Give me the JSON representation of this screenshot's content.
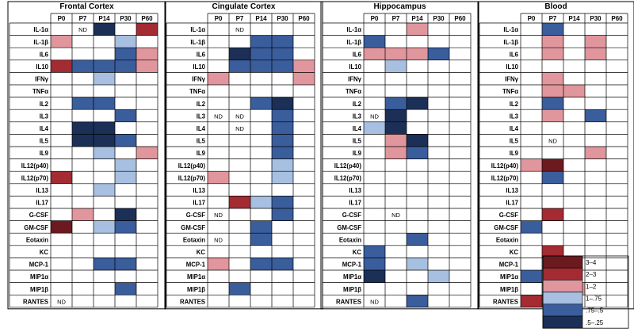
{
  "chart_data": {
    "type": "heatmap",
    "timepoints": [
      "P0",
      "P7",
      "P14",
      "P30",
      "P60"
    ],
    "cytokines": [
      "IL-1α",
      "IL-1β",
      "IL6",
      "IL10",
      "IFNγ",
      "TNFα",
      "IL2",
      "IL3",
      "IL4",
      "IL5",
      "IL9",
      "IL12(p40)",
      "IL12(p70)",
      "IL13",
      "IL17",
      "G-CSF",
      "GM-CSF",
      "Eotaxin",
      "KC",
      "MCP-1",
      "MIP1α",
      "MIP1β",
      "RANTES"
    ],
    "nd_label": "ND",
    "colors": {
      "3–4": "#6b1a1f",
      "2–3": "#a32b31",
      "1–2": "#e0969c",
      "1–.75": "#a7bfe0",
      ".75–.5": "#3a5d9c",
      ".5–.25": "#1b2f57"
    },
    "regions": [
      {
        "title": "Frontal Cortex",
        "cells": [
          [
            "",
            "ND",
            ".5–.25",
            "",
            "2–3"
          ],
          [
            "1–2",
            "",
            "",
            "1–.75",
            ""
          ],
          [
            "",
            "",
            "",
            ".75–.5",
            "1–2"
          ],
          [
            "2–3",
            ".75–.5",
            ".75–.5",
            ".75–.5",
            "1–2"
          ],
          [
            "",
            "",
            "1–.75",
            "",
            ""
          ],
          [
            "",
            "",
            "",
            "",
            ""
          ],
          [
            "",
            ".75–.5",
            ".75–.5",
            "",
            ""
          ],
          [
            "",
            "",
            "",
            ".75–.5",
            ""
          ],
          [
            "",
            ".5–.25",
            ".5–.25",
            "",
            ""
          ],
          [
            "",
            ".5–.25",
            ".5–.25",
            ".75–.5",
            ""
          ],
          [
            "",
            "",
            "1–.75",
            "",
            "1–2"
          ],
          [
            "",
            "",
            "",
            "1–.75",
            ""
          ],
          [
            "2–3",
            "",
            "",
            "1–.75",
            ""
          ],
          [
            "",
            "",
            "1–.75",
            "",
            ""
          ],
          [
            "",
            "",
            "",
            "",
            ""
          ],
          [
            "",
            "1–2",
            "",
            ".5–.25",
            ""
          ],
          [
            "3–4",
            "",
            "1–.75",
            ".75–.5",
            ""
          ],
          [
            "",
            "",
            "",
            "",
            ""
          ],
          [
            "",
            "",
            "",
            "",
            ""
          ],
          [
            "",
            "",
            ".75–.5",
            ".75–.5",
            ""
          ],
          [
            "",
            "",
            "",
            "",
            ""
          ],
          [
            "",
            "",
            "",
            ".75–.5",
            ""
          ],
          [
            "ND",
            "",
            "",
            "",
            ""
          ]
        ]
      },
      {
        "title": "Cingulate Cortex",
        "cells": [
          [
            "",
            "ND",
            "",
            "",
            ""
          ],
          [
            "",
            "",
            ".75–.5",
            ".75–.5",
            ""
          ],
          [
            "",
            ".5–.25",
            ".75–.5",
            ".75–.5",
            ""
          ],
          [
            "",
            ".75–.5",
            ".75–.5",
            ".75–.5",
            "1–2"
          ],
          [
            "1–2",
            "",
            "",
            "",
            "1–2"
          ],
          [
            "",
            "",
            "",
            "",
            ""
          ],
          [
            "",
            "",
            ".75–.5",
            ".5–.25",
            ""
          ],
          [
            "ND",
            "ND",
            "",
            ".75–.5",
            ""
          ],
          [
            "",
            "ND",
            "",
            ".75–.5",
            ""
          ],
          [
            "",
            "",
            "",
            ".75–.5",
            ""
          ],
          [
            "",
            "",
            "",
            ".75–.5",
            ""
          ],
          [
            "",
            "",
            "",
            "1–.75",
            ""
          ],
          [
            "1–2",
            "",
            "",
            "1–.75",
            ""
          ],
          [
            "",
            "",
            "",
            "",
            ""
          ],
          [
            "",
            "2–3",
            "1–.75",
            ".75–.5",
            ""
          ],
          [
            "ND",
            "",
            "",
            ".75–.5",
            ""
          ],
          [
            "",
            "",
            ".75–.5",
            "",
            ""
          ],
          [
            "ND",
            "",
            ".75–.5",
            "",
            ""
          ],
          [
            "",
            "",
            "",
            "",
            ""
          ],
          [
            "1–2",
            "",
            ".75–.5",
            ".75–.5",
            ""
          ],
          [
            "",
            "",
            "",
            "",
            ""
          ],
          [
            "",
            ".75–.5",
            "",
            "",
            ""
          ],
          [
            "",
            "",
            "",
            "",
            ""
          ]
        ]
      },
      {
        "title": "Hippocampus",
        "cells": [
          [
            "",
            "",
            "1–2",
            "",
            ""
          ],
          [
            ".75–.5",
            "",
            "",
            "",
            ""
          ],
          [
            "1–2",
            "1–2",
            "1–2",
            ".75–.5",
            ""
          ],
          [
            "",
            "1–.75",
            "",
            "",
            ""
          ],
          [
            "",
            "",
            "",
            "",
            ""
          ],
          [
            "",
            "",
            "",
            "",
            ""
          ],
          [
            "",
            ".75–.5",
            ".5–.25",
            "",
            ""
          ],
          [
            "ND",
            ".5–.25",
            "",
            "",
            ""
          ],
          [
            "1–.75",
            ".5–.25",
            "",
            "",
            ""
          ],
          [
            "",
            "1–2",
            ".5–.25",
            "",
            ""
          ],
          [
            "",
            "1–2",
            ".75–.5",
            "",
            ""
          ],
          [
            "",
            "",
            "",
            "",
            ""
          ],
          [
            "",
            "",
            "",
            "",
            ""
          ],
          [
            "",
            "",
            "",
            "",
            ""
          ],
          [
            "",
            "",
            "",
            "",
            ""
          ],
          [
            "",
            "ND",
            "",
            "",
            ""
          ],
          [
            "",
            "",
            "",
            "",
            ""
          ],
          [
            "",
            "",
            ".75–.5",
            "",
            ""
          ],
          [
            ".75–.5",
            "",
            "",
            "",
            ""
          ],
          [
            ".75–.5",
            "",
            "1–.75",
            "",
            ""
          ],
          [
            ".5–.25",
            "",
            "",
            "1–.75",
            ""
          ],
          [
            "",
            "",
            "",
            "",
            ""
          ],
          [
            "ND",
            "",
            ".75–.5",
            "",
            ""
          ]
        ]
      },
      {
        "title": "Blood",
        "cells": [
          [
            "",
            ".75–.5",
            "",
            "",
            ""
          ],
          [
            "",
            "1–2",
            "",
            "1–2",
            ""
          ],
          [
            "",
            "1–2",
            "",
            "1–2",
            ""
          ],
          [
            "",
            "",
            "",
            "",
            ""
          ],
          [
            "",
            "1–2",
            "",
            "",
            ""
          ],
          [
            "",
            "1–2",
            "1–2",
            "",
            ""
          ],
          [
            "",
            ".75–.5",
            "",
            "",
            ""
          ],
          [
            "",
            "1–2",
            "",
            ".75–.5",
            ""
          ],
          [
            "",
            "",
            "",
            "",
            ""
          ],
          [
            "",
            "ND",
            "",
            "",
            ""
          ],
          [
            "",
            "",
            "",
            "1–2",
            ""
          ],
          [
            "1–2",
            "3–4",
            "",
            "",
            ""
          ],
          [
            "",
            ".75–.5",
            "",
            "",
            ""
          ],
          [
            "",
            "",
            "",
            "",
            ""
          ],
          [
            "",
            "",
            "",
            "",
            ""
          ],
          [
            "",
            "2–3",
            "",
            "",
            ""
          ],
          [
            ".75–.5",
            "",
            "",
            "",
            ""
          ],
          [
            "",
            "",
            "",
            "",
            ""
          ],
          [
            "",
            "2–3",
            "",
            "",
            ""
          ],
          [
            "",
            "",
            "",
            "",
            ""
          ],
          [
            ".75–.5",
            "",
            "",
            "",
            ""
          ],
          [
            "",
            "",
            "1–2",
            "",
            ""
          ],
          [
            "2–3",
            "1–2",
            "",
            "",
            ""
          ]
        ]
      }
    ],
    "legend": [
      "3–4",
      "2–3",
      "1–2",
      "1–.75",
      ".75–.5",
      ".5–.25"
    ],
    "legend_placement": "bottom-right"
  }
}
